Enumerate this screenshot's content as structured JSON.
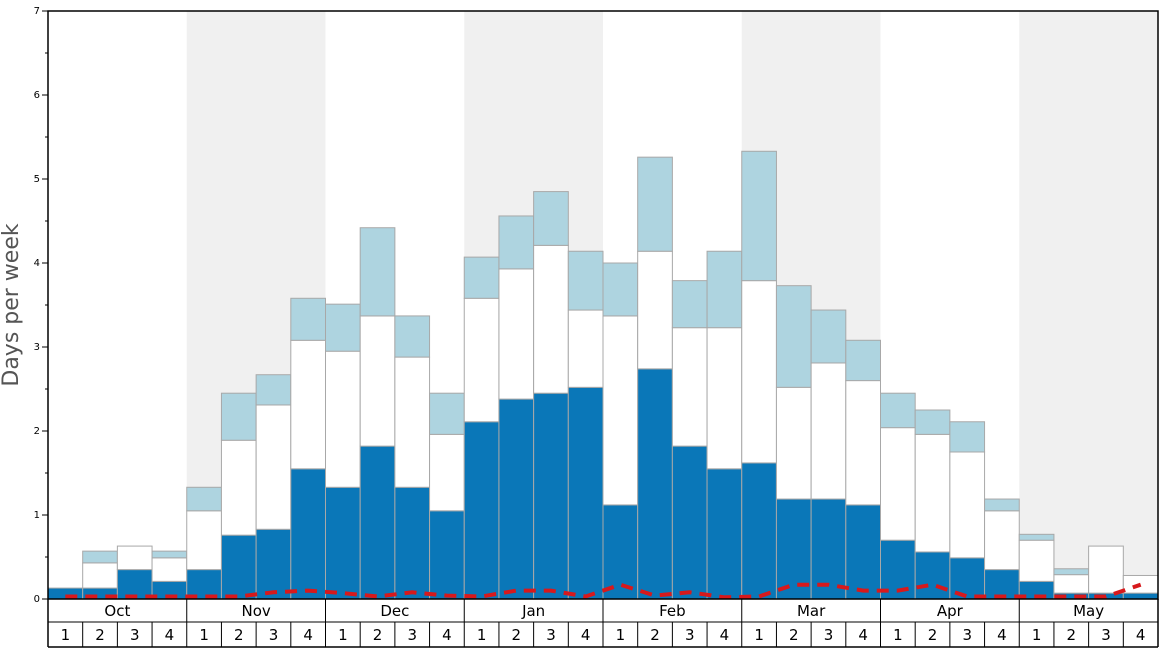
{
  "chart_data": {
    "type": "stacked_bar",
    "y_label": "Days per week",
    "months": [
      "Oct",
      "Nov",
      "Dec",
      "Jan",
      "Feb",
      "Mar",
      "Apr",
      "May"
    ],
    "categories": [
      "1",
      "2",
      "3",
      "4",
      "1",
      "2",
      "3",
      "4",
      "1",
      "2",
      "3",
      "4",
      "1",
      "2",
      "3",
      "4",
      "1",
      "2",
      "3",
      "4",
      "1",
      "2",
      "3",
      "4",
      "1",
      "2",
      "3",
      "4",
      "1",
      "2",
      "3",
      "4"
    ],
    "series": [
      {
        "color": "#0a77b8",
        "values": [
          0.13,
          0.13,
          0.35,
          0.21,
          0.35,
          0.76,
          0.83,
          1.55,
          1.33,
          1.82,
          1.33,
          1.05,
          2.11,
          2.38,
          2.45,
          2.52,
          1.12,
          2.74,
          1.82,
          1.55,
          1.62,
          1.19,
          1.19,
          1.12,
          0.7,
          0.56,
          0.49,
          0.35,
          0.21,
          0.07,
          0.07,
          0.07
        ]
      },
      {
        "color": "#ffffff",
        "values": [
          0,
          0.3,
          0.28,
          0.28,
          0.7,
          1.13,
          1.48,
          1.53,
          1.62,
          1.55,
          1.55,
          0.91,
          1.47,
          1.55,
          1.76,
          0.92,
          2.25,
          1.4,
          1.41,
          1.68,
          2.17,
          1.33,
          1.62,
          1.48,
          1.34,
          1.4,
          1.26,
          0.7,
          0.49,
          0.22,
          0.56,
          0.21
        ]
      },
      {
        "color": "#aed4e0",
        "values": [
          0,
          0.14,
          0,
          0.08,
          0.28,
          0.56,
          0.36,
          0.5,
          0.56,
          1.05,
          0.49,
          0.49,
          0.49,
          0.63,
          0.64,
          0.7,
          0.63,
          1.12,
          0.56,
          0.91,
          1.54,
          1.21,
          0.63,
          0.48,
          0.41,
          0.29,
          0.36,
          0.14,
          0.07,
          0.07,
          0,
          0
        ]
      }
    ],
    "line": {
      "color": "#d7191c",
      "values": [
        0.03,
        0.03,
        0.03,
        0.03,
        0.03,
        0.03,
        0.08,
        0.1,
        0.07,
        0.03,
        0.08,
        0.04,
        0.03,
        0.1,
        0.1,
        0.03,
        0.17,
        0.04,
        0.08,
        0.02,
        0.03,
        0.17,
        0.17,
        0.1,
        0.1,
        0.17,
        0.03,
        0.03,
        0.03,
        0.03,
        0.03,
        0.17
      ]
    },
    "ylim": [
      0,
      7
    ],
    "yticks": [
      0,
      1,
      2,
      3,
      4,
      5,
      6,
      7
    ],
    "minor_yticks": [
      0.5,
      1.5,
      2.5,
      3.5,
      4.5,
      5.5,
      6.5
    ]
  }
}
